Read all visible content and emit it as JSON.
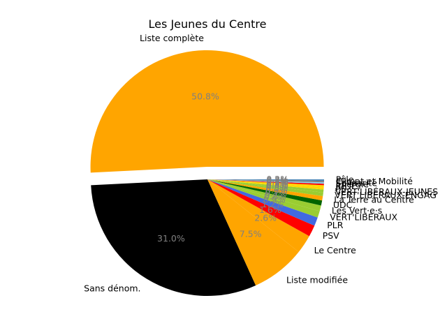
{
  "chart_data": {
    "type": "pie",
    "title": "Les Jeunes du Centre",
    "legend": "none",
    "slices": [
      {
        "label": "Liste complète",
        "value": 50.8,
        "pct_label": "50.8%",
        "color": "#ffa500",
        "explode": true
      },
      {
        "label": "Sans dénom.",
        "value": 31.0,
        "pct_label": "31.0%",
        "color": "#000000"
      },
      {
        "label": "Liste modifiée",
        "value": 7.5,
        "pct_label": "7.5%",
        "color": "#ffa500"
      },
      {
        "label": "Le Centre",
        "value": 2.6,
        "pct_label": "2.6%",
        "color": "#ffa500"
      },
      {
        "label": "PSV",
        "value": 1.6,
        "pct_label": "1.6%",
        "color": "#ff0000"
      },
      {
        "label": "PLR",
        "value": 1.2,
        "pct_label": "1.2%",
        "color": "#4169e1"
      },
      {
        "label": "VERT'LIBÉRAUX",
        "value": 0.9,
        "pct_label": "0.9%",
        "color": "#9acd32"
      },
      {
        "label": "Les Vert·e·s",
        "value": 0.8,
        "pct_label": "0.8%",
        "color": "#9acd32"
      },
      {
        "label": "UDC",
        "value": 0.7,
        "pct_label": "0.7%",
        "color": "#006400"
      },
      {
        "label": "La Terre au Centre",
        "value": 0.6,
        "pct_label": "0.6%",
        "color": "#ffa500"
      },
      {
        "label": "VERT'LIBÉRAUX-ENGAG",
        "value": 0.5,
        "pct_label": "0.5%",
        "color": "#9acd32"
      },
      {
        "label": "VERT'LIBÉRAUX-JEUNES",
        "value": 0.4,
        "pct_label": "0.4%",
        "color": "#9acd32"
      },
      {
        "label": "PS",
        "value": 0.3,
        "pct_label": "0.3%",
        "color": "#ffd700"
      },
      {
        "label": "JUDC",
        "value": 0.3,
        "pct_label": "0.3%",
        "color": "#ffd700"
      },
      {
        "label": "Énergie",
        "value": 0.2,
        "pct_label": "0.2%",
        "color": "#ff0000"
      },
      {
        "label": "Solidarité",
        "value": 0.2,
        "pct_label": "0.2%",
        "color": "#87ceeb"
      },
      {
        "label": "Climat et Mobilité",
        "value": 0.2,
        "pct_label": "0.2%",
        "color": "#808080"
      },
      {
        "label": "Pôle",
        "value": 0.2,
        "pct_label": "0.2%",
        "color": "#4682b4"
      }
    ]
  }
}
